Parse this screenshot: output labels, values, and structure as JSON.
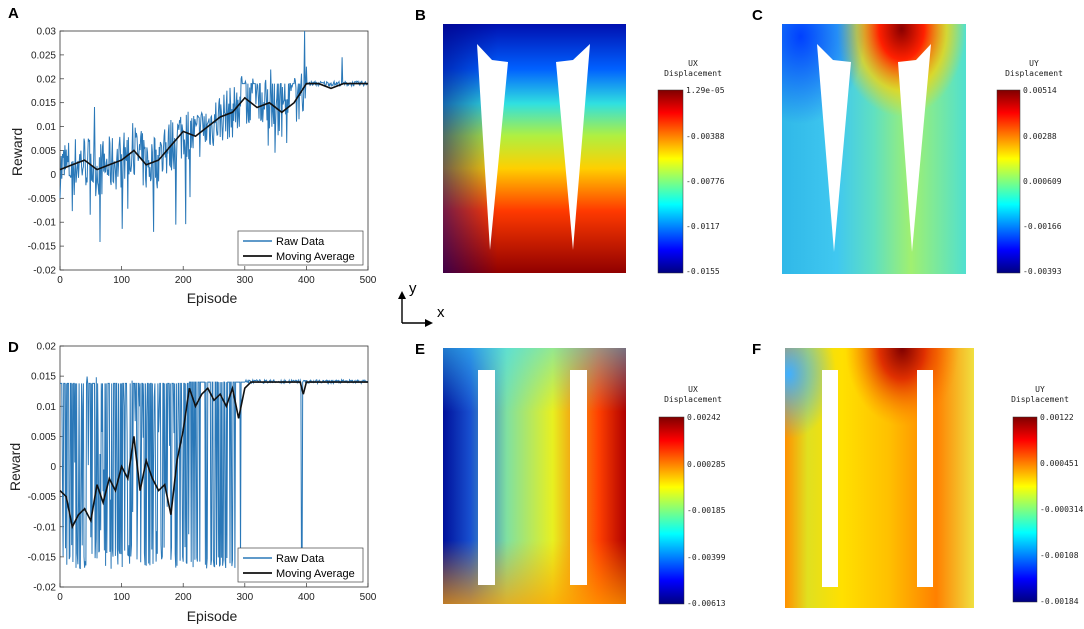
{
  "chart_data": [
    {
      "panel": "A",
      "type": "line",
      "xlabel": "Episode",
      "ylabel": "Reward",
      "xlim": [
        0,
        500
      ],
      "ylim": [
        -0.02,
        0.03
      ],
      "xticks": [
        "0",
        "100",
        "200",
        "300",
        "400",
        "500"
      ],
      "yticks": [
        "-0.02",
        "-0.015",
        "-0.01",
        "-0.005",
        "0",
        "0.005",
        "0.01",
        "0.015",
        "0.02",
        "0.025",
        "0.03"
      ],
      "legend": [
        "Raw Data",
        "Moving Average"
      ],
      "series": [
        {
          "name": "Raw Data",
          "color": "#2a78b8"
        },
        {
          "name": "Moving Average",
          "color": "#111111",
          "x": [
            0,
            20,
            40,
            60,
            80,
            100,
            120,
            140,
            160,
            180,
            200,
            220,
            240,
            260,
            280,
            300,
            320,
            340,
            360,
            380,
            400,
            420,
            440,
            460,
            480,
            500
          ],
          "values": [
            0.001,
            0.002,
            0.003,
            0.001,
            0.002,
            0.003,
            0.005,
            0.002,
            0.003,
            0.006,
            0.009,
            0.008,
            0.01,
            0.012,
            0.013,
            0.016,
            0.014,
            0.015,
            0.013,
            0.015,
            0.019,
            0.019,
            0.018,
            0.019,
            0.019,
            0.019
          ]
        }
      ]
    },
    {
      "panel": "D",
      "type": "line",
      "xlabel": "Episode",
      "ylabel": "Reward",
      "xlim": [
        0,
        500
      ],
      "ylim": [
        -0.02,
        0.02
      ],
      "xticks": [
        "0",
        "100",
        "200",
        "300",
        "400",
        "500"
      ],
      "yticks": [
        "-0.02",
        "-0.015",
        "-0.01",
        "-0.005",
        "0",
        "0.005",
        "0.01",
        "0.015",
        "0.02"
      ],
      "legend": [
        "Raw Data",
        "Moving Average"
      ],
      "series": [
        {
          "name": "Raw Data",
          "color": "#2a78b8"
        },
        {
          "name": "Moving Average",
          "color": "#111111",
          "x": [
            0,
            10,
            20,
            30,
            40,
            50,
            60,
            70,
            80,
            90,
            100,
            110,
            120,
            130,
            140,
            150,
            160,
            170,
            180,
            190,
            200,
            210,
            220,
            230,
            240,
            250,
            260,
            270,
            280,
            290,
            300,
            310,
            350,
            390,
            395,
            400,
            450,
            500
          ],
          "values": [
            -0.004,
            -0.005,
            -0.01,
            -0.008,
            -0.007,
            -0.009,
            -0.003,
            -0.006,
            -0.002,
            -0.004,
            0.0,
            -0.002,
            0.005,
            -0.004,
            0.001,
            -0.002,
            -0.004,
            -0.003,
            -0.008,
            0.001,
            0.006,
            0.013,
            0.01,
            0.012,
            0.013,
            0.011,
            0.012,
            0.01,
            0.013,
            0.008,
            0.013,
            0.014,
            0.014,
            0.014,
            0.012,
            0.014,
            0.014,
            0.014
          ]
        }
      ]
    },
    {
      "panel": "B",
      "type": "heatmap",
      "colorbar_title": [
        "UX",
        "Displacement"
      ],
      "colorbar_values": [
        "1.29e-05",
        "-0.00388",
        "-0.00776",
        "-0.0117",
        "-0.0155"
      ]
    },
    {
      "panel": "C",
      "type": "heatmap",
      "colorbar_title": [
        "UY",
        "Displacement"
      ],
      "colorbar_values": [
        "0.00514",
        "0.00288",
        "0.000609",
        "-0.00166",
        "-0.00393"
      ]
    },
    {
      "panel": "E",
      "type": "heatmap",
      "colorbar_title": [
        "UX",
        "Displacement"
      ],
      "colorbar_values": [
        "0.00242",
        "0.000285",
        "-0.00185",
        "-0.00399",
        "-0.00613"
      ]
    },
    {
      "panel": "F",
      "type": "heatmap",
      "colorbar_title": [
        "UY",
        "Displacement"
      ],
      "colorbar_values": [
        "0.00122",
        "0.000451",
        "-0.000314",
        "-0.00108",
        "-0.00184"
      ]
    }
  ],
  "axes_indicator": {
    "y": "y",
    "x": "x"
  },
  "colors": {
    "raw": "#2a78b8",
    "avg": "#111111"
  }
}
